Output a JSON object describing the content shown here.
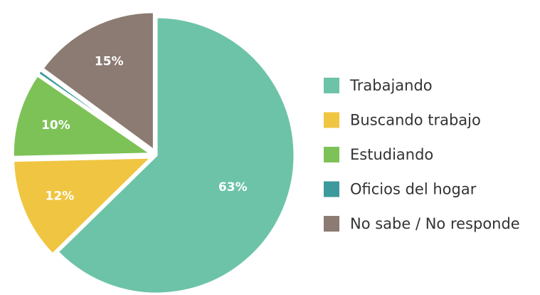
{
  "chart_data": {
    "type": "pie",
    "categories": [
      "Trabajando",
      "Buscando trabajo",
      "Estudiando",
      "Oficios del hogar",
      "No sabe / No responde"
    ],
    "values": [
      63,
      12,
      10,
      0.5,
      15
    ],
    "value_labels": [
      "63%",
      "12%",
      "10%",
      null,
      "15%"
    ],
    "colors": [
      "#6cc3a8",
      "#f0c541",
      "#7dc257",
      "#3d9a9c",
      "#8c7b72"
    ],
    "legend": "right"
  }
}
